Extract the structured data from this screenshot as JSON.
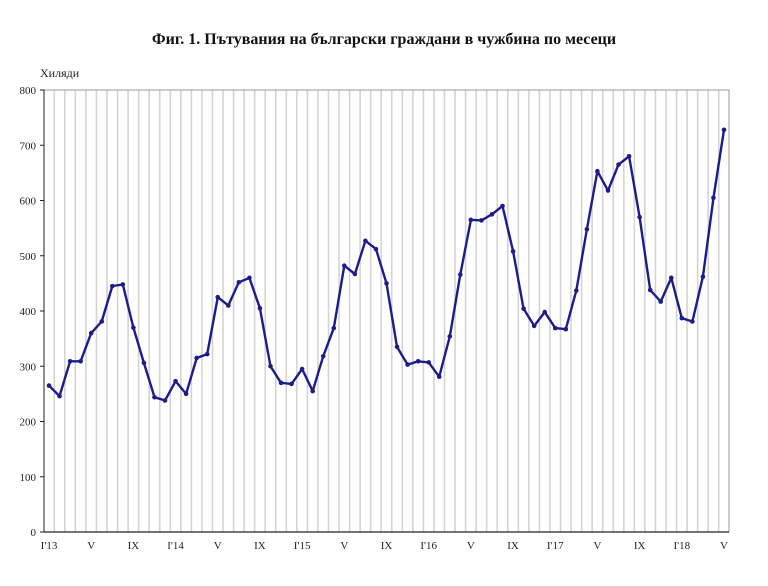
{
  "chart_data": {
    "type": "line",
    "title": "Фиг. 1. Пътувания на български граждани в чужбина по месеци",
    "ylabel": "Хиляди",
    "xlabel": "",
    "ylim": [
      0,
      800
    ],
    "yticks": [
      0,
      100,
      200,
      300,
      400,
      500,
      600,
      700,
      800
    ],
    "xtick_labels": [
      {
        "index": 0,
        "label": "I'13"
      },
      {
        "index": 4,
        "label": "V"
      },
      {
        "index": 8,
        "label": "IX"
      },
      {
        "index": 12,
        "label": "I'14"
      },
      {
        "index": 16,
        "label": "V"
      },
      {
        "index": 20,
        "label": "IX"
      },
      {
        "index": 24,
        "label": "I'15"
      },
      {
        "index": 28,
        "label": "V"
      },
      {
        "index": 32,
        "label": "IX"
      },
      {
        "index": 36,
        "label": "I'16"
      },
      {
        "index": 40,
        "label": "V"
      },
      {
        "index": 44,
        "label": "IX"
      },
      {
        "index": 48,
        "label": "I'17"
      },
      {
        "index": 52,
        "label": "V"
      },
      {
        "index": 56,
        "label": "IX"
      },
      {
        "index": 60,
        "label": "I'18"
      },
      {
        "index": 64,
        "label": "V"
      }
    ],
    "grid": "vertical",
    "legend": "none",
    "line_color": "#1c1c8a",
    "x": [
      "2013-01",
      "2013-02",
      "2013-03",
      "2013-04",
      "2013-05",
      "2013-06",
      "2013-07",
      "2013-08",
      "2013-09",
      "2013-10",
      "2013-11",
      "2013-12",
      "2014-01",
      "2014-02",
      "2014-03",
      "2014-04",
      "2014-05",
      "2014-06",
      "2014-07",
      "2014-08",
      "2014-09",
      "2014-10",
      "2014-11",
      "2014-12",
      "2015-01",
      "2015-02",
      "2015-03",
      "2015-04",
      "2015-05",
      "2015-06",
      "2015-07",
      "2015-08",
      "2015-09",
      "2015-10",
      "2015-11",
      "2015-12",
      "2016-01",
      "2016-02",
      "2016-03",
      "2016-04",
      "2016-05",
      "2016-06",
      "2016-07",
      "2016-08",
      "2016-09",
      "2016-10",
      "2016-11",
      "2016-12",
      "2017-01",
      "2017-02",
      "2017-03",
      "2017-04",
      "2017-05",
      "2017-06",
      "2017-07",
      "2017-08",
      "2017-09",
      "2017-10",
      "2017-11",
      "2017-12",
      "2018-01",
      "2018-02",
      "2018-03",
      "2018-04",
      "2018-05"
    ],
    "series": [
      {
        "name": "Пътувания",
        "values": [
          265,
          246,
          309,
          309,
          360,
          381,
          445,
          448,
          370,
          306,
          244,
          238,
          273,
          250,
          315,
          322,
          425,
          410,
          452,
          460,
          405,
          300,
          270,
          268,
          295,
          255,
          318,
          369,
          482,
          467,
          527,
          512,
          450,
          335,
          303,
          309,
          307,
          281,
          354,
          466,
          565,
          564,
          575,
          590,
          508,
          404,
          373,
          398,
          369,
          367,
          437,
          548,
          653,
          618,
          665,
          680,
          570,
          438,
          417,
          460,
          387,
          381,
          462,
          605,
          728
        ]
      }
    ]
  }
}
